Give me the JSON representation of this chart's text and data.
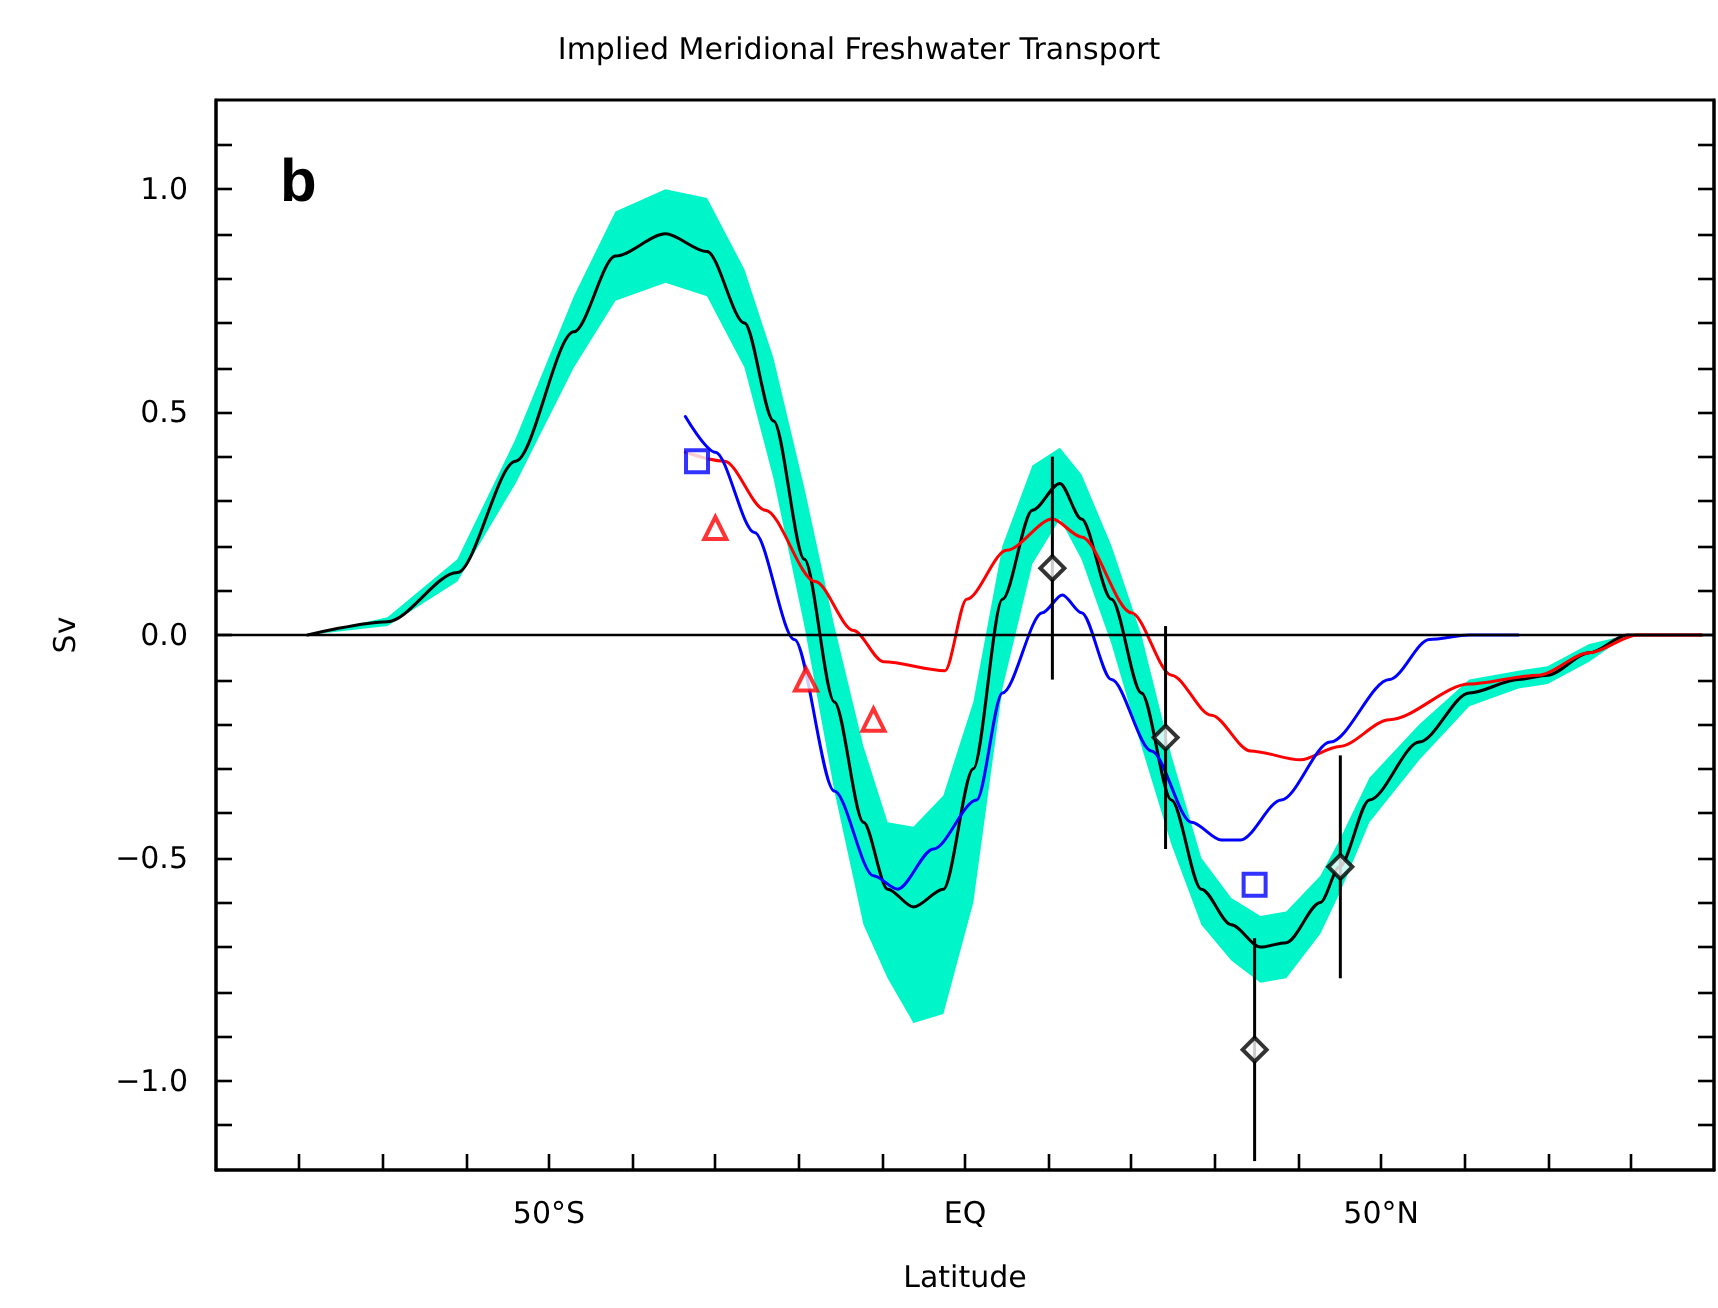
{
  "chart_data": {
    "type": "line",
    "title": "Implied Meridional Freshwater Transport",
    "xlabel": "Latitude",
    "ylabel": "Sv",
    "annotations": [
      "b"
    ],
    "xlim": [
      -90,
      90
    ],
    "xticks": [
      {
        "value": -80,
        "label": null
      },
      {
        "value": -70,
        "label": null
      },
      {
        "value": -60,
        "label": null
      },
      {
        "value": -50,
        "label": "50°S"
      },
      {
        "value": -40,
        "label": null
      },
      {
        "value": -30,
        "label": null
      },
      {
        "value": -20,
        "label": null
      },
      {
        "value": -10,
        "label": null
      },
      {
        "value": 0,
        "label": "EQ"
      },
      {
        "value": 10,
        "label": null
      },
      {
        "value": 20,
        "label": null
      },
      {
        "value": 30,
        "label": null
      },
      {
        "value": 40,
        "label": null
      },
      {
        "value": 50,
        "label": "50°N"
      },
      {
        "value": 60,
        "label": null
      },
      {
        "value": 70,
        "label": null
      },
      {
        "value": 80,
        "label": null
      }
    ],
    "ylim": [
      -1.2,
      1.2
    ],
    "yticks": [
      {
        "value": -1.1,
        "label": null
      },
      {
        "value": -1.0,
        "label": "−1.0"
      },
      {
        "value": -0.9,
        "label": null
      },
      {
        "value": -0.8,
        "label": null
      },
      {
        "value": -0.7,
        "label": null
      },
      {
        "value": -0.6,
        "label": null
      },
      {
        "value": -0.5,
        "label": "−0.5"
      },
      {
        "value": -0.4,
        "label": null
      },
      {
        "value": -0.3,
        "label": null
      },
      {
        "value": -0.2,
        "label": null
      },
      {
        "value": -0.1,
        "label": null
      },
      {
        "value": 0,
        "label": "0.0"
      },
      {
        "value": 0.1,
        "label": null
      },
      {
        "value": 0.2,
        "label": null
      },
      {
        "value": 0.3,
        "label": null
      },
      {
        "value": 0.4,
        "label": null
      },
      {
        "value": 0.5,
        "label": "0.5"
      },
      {
        "value": 0.6,
        "label": null
      },
      {
        "value": 0.7,
        "label": null
      },
      {
        "value": 0.8,
        "label": null
      },
      {
        "value": 0.9,
        "label": null
      },
      {
        "value": 1.0,
        "label": "1.0"
      },
      {
        "value": 1.1,
        "label": null
      }
    ],
    "grid": false,
    "ref_lines": [
      {
        "axis": "y",
        "value": 0,
        "color": "#000000"
      }
    ],
    "series": [
      {
        "color": "#000000",
        "marker": "none",
        "x": [
          -79,
          -69.4,
          -61,
          -54,
          -47,
          -42,
          -36,
          -31,
          -26.5,
          -23,
          -19.3,
          -15.7,
          -12.2,
          -9.3,
          -6.2,
          -2.6,
          1,
          4.5,
          8.1,
          11.4,
          14,
          17.6,
          21.2,
          24.8,
          28.4,
          32,
          35.5,
          38.6,
          42.7,
          45,
          48.6,
          54.6,
          60.6,
          66.5,
          70,
          75,
          79.6,
          88.5
        ],
        "values": [
          0,
          0.03,
          0.14,
          0.39,
          0.68,
          0.85,
          0.9,
          0.86,
          0.7,
          0.48,
          0.17,
          -0.15,
          -0.42,
          -0.57,
          -0.61,
          -0.57,
          -0.3,
          0.08,
          0.28,
          0.34,
          0.26,
          0.08,
          -0.13,
          -0.37,
          -0.57,
          -0.65,
          -0.7,
          -0.69,
          -0.6,
          -0.52,
          -0.37,
          -0.24,
          -0.13,
          -0.1,
          -0.09,
          -0.04,
          0,
          0
        ],
        "upper": [
          0,
          0.04,
          0.17,
          0.44,
          0.76,
          0.95,
          1.0,
          0.98,
          0.82,
          0.62,
          0.33,
          0.02,
          -0.25,
          -0.42,
          -0.43,
          -0.36,
          -0.15,
          0.2,
          0.38,
          0.42,
          0.36,
          0.2,
          0,
          -0.27,
          -0.5,
          -0.59,
          -0.63,
          -0.62,
          -0.54,
          -0.46,
          -0.32,
          -0.2,
          -0.1,
          -0.08,
          -0.07,
          -0.02,
          0,
          0
        ],
        "lower": [
          0,
          0.02,
          0.12,
          0.34,
          0.6,
          0.75,
          0.79,
          0.76,
          0.6,
          0.35,
          0.02,
          -0.35,
          -0.65,
          -0.77,
          -0.87,
          -0.85,
          -0.6,
          -0.12,
          0.16,
          0.26,
          0.17,
          -0.02,
          -0.25,
          -0.47,
          -0.65,
          -0.73,
          -0.78,
          -0.77,
          -0.67,
          -0.58,
          -0.42,
          -0.28,
          -0.16,
          -0.12,
          -0.11,
          -0.06,
          0,
          0
        ]
      },
      {
        "color": "#ff0000",
        "marker": "none",
        "x": [
          -33.6,
          -28.9,
          -24,
          -18,
          -13.4,
          -9.8,
          -2.4,
          0.2,
          5,
          10.5,
          14,
          20,
          24.8,
          29.6,
          34.3,
          40.3,
          45,
          51,
          60.6,
          68.9,
          75,
          80.8,
          88.5
        ],
        "values": [
          0.41,
          0.39,
          0.28,
          0.12,
          0.01,
          -0.06,
          -0.08,
          0.08,
          0.19,
          0.26,
          0.22,
          0.05,
          -0.09,
          -0.18,
          -0.26,
          -0.28,
          -0.25,
          -0.19,
          -0.11,
          -0.09,
          -0.04,
          0,
          0
        ]
      },
      {
        "color": "#0000ff",
        "marker": "none",
        "x": [
          -33.6,
          -30,
          -25.3,
          -20.5,
          -15.7,
          -11,
          -8.1,
          -3.8,
          1.4,
          4.5,
          9.3,
          11.7,
          14,
          17.6,
          22.4,
          27.2,
          30.8,
          33.1,
          38,
          43.9,
          51,
          55.8,
          60.6,
          66.5
        ],
        "values": [
          0.49,
          0.41,
          0.23,
          -0.01,
          -0.35,
          -0.54,
          -0.57,
          -0.48,
          -0.37,
          -0.13,
          0.05,
          0.09,
          0.05,
          -0.1,
          -0.26,
          -0.42,
          -0.46,
          -0.46,
          -0.37,
          -0.24,
          -0.1,
          -0.01,
          0,
          0
        ]
      },
      {
        "type": "scatter",
        "color": "#ff0000",
        "marker": "triangle",
        "x": [
          -30,
          -19.1,
          -11
        ],
        "values": [
          0.24,
          -0.1,
          -0.19
        ]
      },
      {
        "type": "scatter",
        "color": "#0000ff",
        "marker": "square",
        "x": [
          -32.2,
          34.8
        ],
        "values": [
          0.39,
          -0.56
        ]
      },
      {
        "type": "scatter",
        "color": "#000000",
        "marker": "diamond",
        "x": [
          10.5,
          24.1,
          34.8,
          45.1
        ],
        "values": [
          0.15,
          -0.23,
          -0.93,
          -0.52
        ],
        "errors": [
          0.25,
          0.25,
          0.25,
          0.25
        ]
      }
    ]
  }
}
